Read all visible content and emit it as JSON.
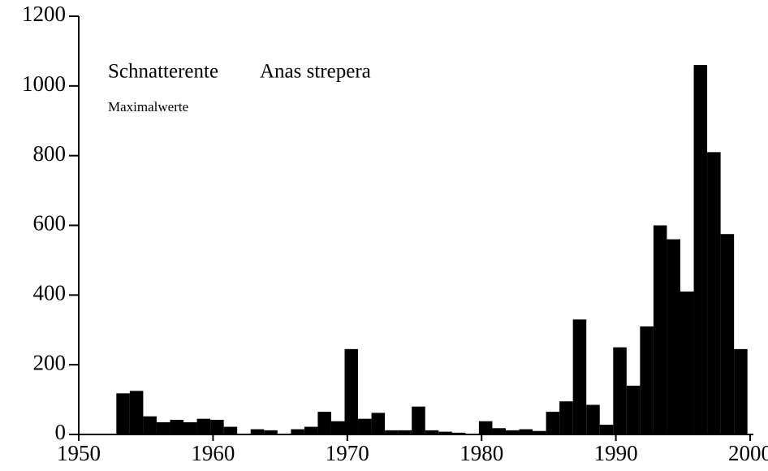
{
  "chart_data": {
    "type": "bar",
    "title": "Schnatterente",
    "species": "Anas strepera",
    "subtitle": "Maximalwerte",
    "x": [
      1953,
      1954,
      1955,
      1956,
      1957,
      1958,
      1959,
      1960,
      1961,
      1962,
      1963,
      1964,
      1965,
      1966,
      1967,
      1968,
      1969,
      1970,
      1971,
      1972,
      1973,
      1974,
      1975,
      1976,
      1977,
      1978,
      1979,
      1980,
      1981,
      1982,
      1983,
      1984,
      1985,
      1986,
      1987,
      1988,
      1989,
      1990,
      1991,
      1992,
      1993,
      1994,
      1995,
      1996,
      1997,
      1998,
      1999
    ],
    "values": [
      118,
      125,
      52,
      35,
      42,
      35,
      45,
      42,
      22,
      0,
      15,
      12,
      0,
      15,
      22,
      65,
      38,
      245,
      45,
      62,
      12,
      12,
      80,
      12,
      8,
      5,
      0,
      38,
      18,
      12,
      15,
      10,
      65,
      95,
      330,
      85,
      28,
      250,
      140,
      310,
      600,
      560,
      410,
      1060,
      810,
      575,
      245
    ],
    "color": "#000000",
    "xlim": [
      1950,
      2000
    ],
    "xticks": [
      1950,
      1960,
      1970,
      1980,
      1990,
      2000
    ],
    "ylim": [
      0,
      1200
    ],
    "yticks": [
      0,
      200,
      400,
      600,
      800,
      1000,
      1200
    ]
  }
}
